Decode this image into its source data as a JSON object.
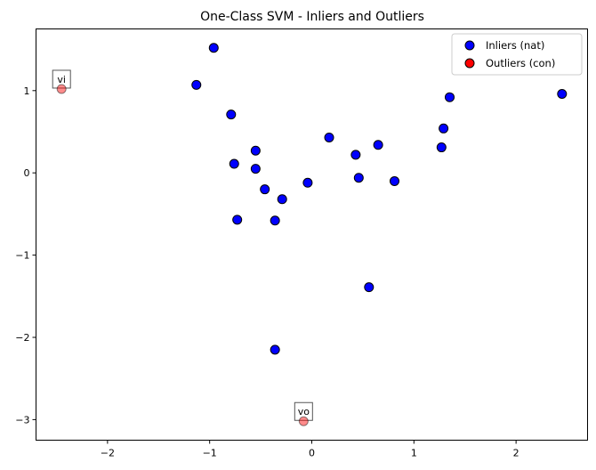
{
  "chart_data": {
    "type": "scatter",
    "title": "One-Class SVM - Inliers and Outliers",
    "xlabel": "",
    "ylabel": "",
    "xlim": [
      -2.7,
      2.7
    ],
    "ylim": [
      -3.25,
      1.75
    ],
    "xticks": [
      -2,
      -1,
      0,
      1,
      2
    ],
    "yticks": [
      -3,
      -2,
      -1,
      0,
      1
    ],
    "grid": false,
    "legend_position": "top-right",
    "series": [
      {
        "name": "Inliers (nat)",
        "color": "#0000ff",
        "points": [
          [
            -0.96,
            1.52
          ],
          [
            -1.13,
            1.07
          ],
          [
            -0.79,
            0.71
          ],
          [
            -0.76,
            0.11
          ],
          [
            -0.55,
            0.27
          ],
          [
            -0.55,
            0.05
          ],
          [
            -0.46,
            -0.2
          ],
          [
            -0.29,
            -0.32
          ],
          [
            -0.73,
            -0.57
          ],
          [
            -0.36,
            -0.58
          ],
          [
            -0.04,
            -0.12
          ],
          [
            0.17,
            0.43
          ],
          [
            0.43,
            0.22
          ],
          [
            0.46,
            -0.06
          ],
          [
            0.65,
            0.34
          ],
          [
            0.81,
            -0.1
          ],
          [
            1.27,
            0.31
          ],
          [
            1.29,
            0.54
          ],
          [
            1.35,
            0.92
          ],
          [
            2.45,
            0.96
          ],
          [
            0.56,
            -1.39
          ],
          [
            -0.36,
            -2.15
          ]
        ]
      },
      {
        "name": "Outliers (con)",
        "color": "#ff0000",
        "points": [
          [
            -2.45,
            1.02
          ],
          [
            -0.08,
            -3.02
          ]
        ]
      }
    ],
    "annotations": [
      {
        "text": "vi",
        "x": -2.45,
        "y": 1.02
      },
      {
        "text": "vo",
        "x": -0.08,
        "y": -3.02
      }
    ]
  }
}
